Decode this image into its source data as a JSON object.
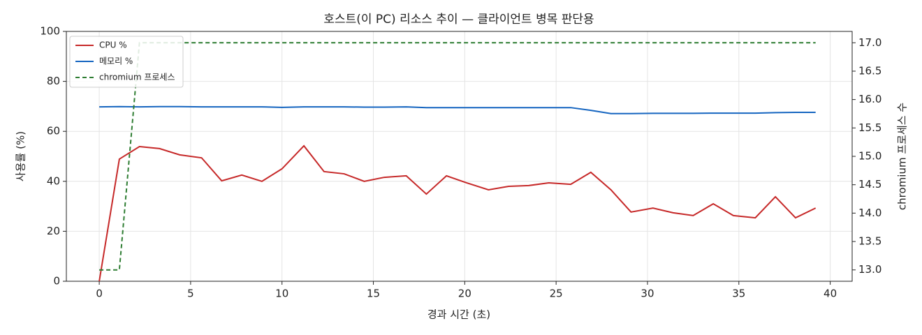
{
  "chart_data": {
    "type": "line",
    "title": "호스트(이 PC) 리소스 추이 — 클라이언트 병목 판단용",
    "x_label": "경과 시간 (초)",
    "y_label": "사용률 (%)",
    "y2_label": "chromium 프로세스 수",
    "x": [
      0,
      1.1,
      2.2,
      3.3,
      4.4,
      5.6,
      6.7,
      7.8,
      8.9,
      10.0,
      11.2,
      12.3,
      13.4,
      14.5,
      15.6,
      16.8,
      17.9,
      19.0,
      20.1,
      21.3,
      22.4,
      23.5,
      24.6,
      25.8,
      26.9,
      28.0,
      29.1,
      30.3,
      31.4,
      32.5,
      33.6,
      34.7,
      35.9,
      37.0,
      38.1,
      39.2
    ],
    "series": [
      {
        "name": "CPU %",
        "color": "#c62828",
        "dash": false,
        "values": [
          0,
          48.9,
          53.9,
          53.1,
          50.6,
          49.4,
          40.2,
          42.5,
          40,
          45,
          54.2,
          43.9,
          43,
          40,
          41.6,
          42.2,
          34.9,
          42.2,
          39.4,
          36.6,
          38,
          38.3,
          39.4,
          38.8,
          43.6,
          36.6,
          27.7,
          29.3,
          27.4,
          26.3,
          31,
          26.3,
          25.4,
          33.8,
          25.4,
          29.3
        ]
      },
      {
        "name": "메모리 %",
        "color": "#1565c0",
        "dash": false,
        "values": [
          69.8,
          69.9,
          69.8,
          69.9,
          69.9,
          69.8,
          69.8,
          69.8,
          69.8,
          69.6,
          69.8,
          69.8,
          69.8,
          69.7,
          69.7,
          69.8,
          69.5,
          69.5,
          69.5,
          69.5,
          69.5,
          69.5,
          69.5,
          69.5,
          68.4,
          67.1,
          67.1,
          67.2,
          67.2,
          67.2,
          67.3,
          67.3,
          67.3,
          67.5,
          67.6,
          67.6
        ]
      },
      {
        "name": "chromium 프로세스",
        "color": "#2e7d32",
        "dash": true,
        "axis": "y2",
        "values": [
          13,
          13,
          17,
          17,
          17,
          17,
          17,
          17,
          17,
          17,
          17,
          17,
          17,
          17,
          17,
          17,
          17,
          17,
          17,
          17,
          17,
          17,
          17,
          17,
          17,
          17,
          17,
          17,
          17,
          17,
          17,
          17,
          17,
          17,
          17,
          17
        ]
      }
    ],
    "xlim": [
      -1.8,
      41.2
    ],
    "xticks": [
      0,
      5,
      10,
      15,
      20,
      25,
      30,
      35,
      40
    ],
    "ylim": [
      0,
      100
    ],
    "yticks": [
      0,
      20,
      40,
      60,
      80,
      100
    ],
    "y2lim": [
      12.8,
      17.2
    ],
    "y2ticks": [
      {
        "value": 13,
        "label": "13.0"
      },
      13.5,
      {
        "value": 14,
        "label": "14.0"
      },
      14.5,
      {
        "value": 15,
        "label": "15.0"
      },
      15.5,
      {
        "value": 16,
        "label": "16.0"
      },
      16.5,
      {
        "value": 17,
        "label": "17.0"
      }
    ],
    "grid": true,
    "legend": "upper left"
  }
}
